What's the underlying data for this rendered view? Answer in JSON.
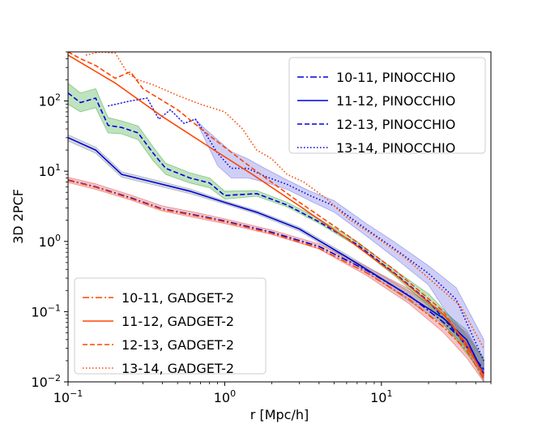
{
  "chart_data": {
    "type": "line",
    "title": "",
    "xlabel": "r [Mpc/h]",
    "ylabel": "3D 2PCF",
    "xscale": "log",
    "yscale": "log",
    "xlim": [
      0.1,
      50
    ],
    "ylim": [
      0.01,
      500
    ],
    "x_ticks": [
      {
        "value": 0.1,
        "label": "10",
        "exp": "−1"
      },
      {
        "value": 1,
        "label": "10",
        "exp": "0"
      },
      {
        "value": 10,
        "label": "10",
        "exp": "1"
      }
    ],
    "y_ticks": [
      {
        "value": 0.01,
        "label": "10",
        "exp": "−2"
      },
      {
        "value": 0.1,
        "label": "10",
        "exp": "−1"
      },
      {
        "value": 1,
        "label": "10",
        "exp": "0"
      },
      {
        "value": 10,
        "label": "10",
        "exp": "1"
      },
      {
        "value": 100,
        "label": "10",
        "exp": "2"
      }
    ],
    "grid": false,
    "legends": [
      {
        "placement": "top-right",
        "entries": [
          "10-11, PINOCCHIO",
          "11-12, PINOCCHIO",
          "12-13, PINOCCHIO",
          "13-14, PINOCCHIO"
        ]
      },
      {
        "placement": "lower-left",
        "entries": [
          "10-11, GADGET-2",
          "11-12, GADGET-2",
          "12-13, GADGET-2",
          "13-14, GADGET-2"
        ]
      }
    ],
    "colors": {
      "pinocchio": "#0000dd",
      "gadget": "#ff4500"
    },
    "series": [
      {
        "name": "10-11, PINOCCHIO",
        "color": "#0000dd",
        "dash": "dashdot",
        "x": [
          0.1,
          0.15,
          0.25,
          0.4,
          0.7,
          1.0,
          2.0,
          4.0,
          8.0,
          15.0,
          25.0,
          35.0,
          45.0
        ],
        "y": [
          7.5,
          6.0,
          4.2,
          2.9,
          2.3,
          1.95,
          1.35,
          0.85,
          0.39,
          0.17,
          0.07,
          0.035,
          0.013
        ],
        "band": {
          "color": "#e03c3c",
          "lo": [
            6.9,
            5.5,
            3.9,
            2.7,
            2.1,
            1.8,
            1.25,
            0.78,
            0.33,
            0.13,
            0.05,
            0.022,
            0.01
          ],
          "hi": [
            8.2,
            6.6,
            4.6,
            3.2,
            2.5,
            2.1,
            1.45,
            0.92,
            0.44,
            0.21,
            0.09,
            0.05,
            0.02
          ]
        }
      },
      {
        "name": "11-12, PINOCCHIO",
        "color": "#0000dd",
        "dash": "solid",
        "x": [
          0.1,
          0.15,
          0.22,
          0.35,
          0.6,
          1.0,
          1.6,
          3.0,
          6.0,
          12.0,
          25.0,
          35.0,
          45.0
        ],
        "y": [
          30,
          20,
          9,
          7,
          5.2,
          3.6,
          2.6,
          1.5,
          0.6,
          0.23,
          0.08,
          0.04,
          0.013
        ],
        "band": {
          "color": "#708090",
          "lo": [
            27,
            18,
            8.2,
            6.4,
            4.8,
            3.4,
            2.45,
            1.4,
            0.56,
            0.2,
            0.065,
            0.03,
            0.01
          ],
          "hi": [
            33,
            22,
            9.8,
            7.6,
            5.6,
            3.8,
            2.75,
            1.6,
            0.65,
            0.26,
            0.1,
            0.055,
            0.02
          ]
        }
      },
      {
        "name": "12-13, PINOCCHIO",
        "color": "#0000dd",
        "dash": "dashed",
        "x": [
          0.1,
          0.12,
          0.15,
          0.18,
          0.22,
          0.28,
          0.35,
          0.42,
          0.6,
          0.8,
          1.0,
          1.6,
          2.5,
          4.0,
          7.0,
          12.0,
          20.0,
          30.0,
          45.0
        ],
        "y": [
          130,
          95,
          110,
          45,
          42,
          35,
          18,
          11,
          8,
          6.8,
          4.5,
          4.8,
          3.3,
          1.9,
          0.9,
          0.36,
          0.14,
          0.05,
          0.015
        ],
        "band": {
          "color": "#2ca02c",
          "lo": [
            90,
            70,
            80,
            35,
            34,
            28,
            14,
            9,
            6.8,
            5.8,
            4.0,
            4.4,
            3.1,
            1.8,
            0.85,
            0.33,
            0.12,
            0.04,
            0.012
          ],
          "hi": [
            180,
            130,
            150,
            58,
            52,
            44,
            22,
            13,
            9.5,
            8.0,
            5.2,
            5.3,
            3.6,
            2.1,
            1.0,
            0.4,
            0.18,
            0.07,
            0.022
          ]
        }
      },
      {
        "name": "13-14, PINOCCHIO",
        "color": "#0000dd",
        "dash": "dotted",
        "x": [
          0.18,
          0.25,
          0.32,
          0.38,
          0.45,
          0.55,
          0.65,
          0.75,
          0.9,
          1.1,
          1.4,
          1.8,
          2.5,
          3.5,
          5.0,
          8.0,
          12.0,
          20.0,
          30.0,
          45.0
        ],
        "y": [
          85,
          100,
          110,
          55,
          75,
          48,
          55,
          35,
          18,
          11,
          11,
          8.5,
          6.5,
          4.5,
          3.2,
          1.5,
          0.8,
          0.35,
          0.15,
          0.02
        ],
        "band": {
          "color": "#6060e0",
          "lo": [
            85,
            100,
            110,
            55,
            75,
            48,
            55,
            28,
            12,
            8,
            8,
            7,
            5.5,
            3.8,
            2.6,
            1.2,
            0.6,
            0.24,
            0.06,
            0.012
          ],
          "hi": [
            85,
            100,
            110,
            55,
            75,
            48,
            55,
            40,
            28,
            19,
            15,
            11,
            7.5,
            5.2,
            3.8,
            1.8,
            1.0,
            0.45,
            0.22,
            0.04
          ]
        }
      },
      {
        "name": "10-11, GADGET-2",
        "color": "#ff4500",
        "dash": "dashdot",
        "x": [
          0.1,
          0.15,
          0.25,
          0.4,
          0.7,
          1.0,
          2.0,
          4.0,
          8.0,
          15.0,
          25.0,
          35.0,
          45.0
        ],
        "y": [
          7.4,
          5.9,
          4.1,
          2.85,
          2.25,
          1.9,
          1.3,
          0.8,
          0.36,
          0.15,
          0.06,
          0.028,
          0.011
        ]
      },
      {
        "name": "11-12, GADGET-2",
        "color": "#ff4500",
        "dash": "solid",
        "x": [
          0.1,
          0.2,
          0.4,
          0.8,
          1.5,
          3.0,
          6.0,
          12.0,
          25.0,
          35.0,
          45.0
        ],
        "y": [
          450,
          180,
          60,
          22,
          9,
          3.2,
          1.1,
          0.35,
          0.09,
          0.035,
          0.012
        ]
      },
      {
        "name": "12-13, GADGET-2",
        "color": "#ff4500",
        "dash": "dashed",
        "x": [
          0.1,
          0.12,
          0.15,
          0.2,
          0.25,
          0.3,
          0.5,
          0.8,
          1.5,
          3.0,
          6.0,
          12.0,
          25.0,
          45.0
        ],
        "y": [
          500,
          400,
          320,
          210,
          260,
          150,
          75,
          32,
          11,
          3.6,
          1.25,
          0.4,
          0.1,
          0.013
        ]
      },
      {
        "name": "13-14, GADGET-2",
        "color": "#ff4500",
        "dash": "dotted",
        "x": [
          0.13,
          0.16,
          0.2,
          0.24,
          0.28,
          0.35,
          0.5,
          0.7,
          1.0,
          1.3,
          1.6,
          2.0,
          2.5,
          3.2,
          4.5,
          6.0,
          9.0,
          14.0,
          22.0,
          32.0,
          45.0
        ],
        "y": [
          450,
          500,
          480,
          250,
          200,
          170,
          120,
          90,
          70,
          40,
          20,
          15,
          9,
          7,
          4,
          2.2,
          1.2,
          0.6,
          0.25,
          0.12,
          0.03
        ]
      }
    ]
  }
}
